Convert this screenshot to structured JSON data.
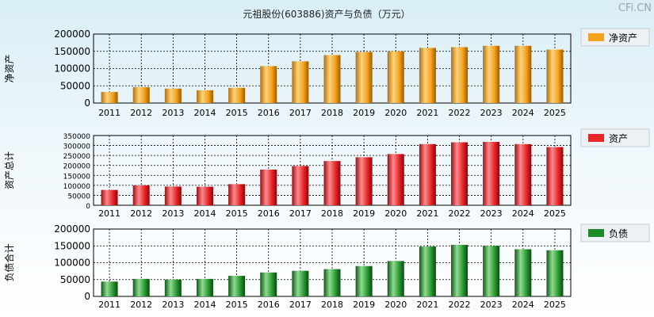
{
  "title": "元祖股份(603886)资产与负债（万元）",
  "brand": "CFi.CN",
  "chart_data": [
    {
      "type": "bar",
      "ylabel": "净资产",
      "legend": "净资产",
      "color": "#f5a21f",
      "categories": [
        "2011",
        "2012",
        "2013",
        "2014",
        "2015",
        "2016",
        "2017",
        "2018",
        "2019",
        "2020",
        "2021",
        "2022",
        "2023",
        "2024",
        "2025"
      ],
      "values": [
        32000,
        46000,
        42000,
        37000,
        44000,
        107000,
        121000,
        139000,
        148000,
        150000,
        160000,
        162000,
        166000,
        166000,
        155000
      ],
      "ylim": [
        0,
        200000
      ],
      "yticks": [
        "0",
        "50000",
        "100000",
        "150000",
        "200000"
      ]
    },
    {
      "type": "bar",
      "ylabel": "资产总计",
      "legend": "资产",
      "color": "#e8262a",
      "categories": [
        "2011",
        "2012",
        "2013",
        "2014",
        "2015",
        "2016",
        "2017",
        "2018",
        "2019",
        "2020",
        "2021",
        "2022",
        "2023",
        "2024",
        "2025"
      ],
      "values": [
        77000,
        100000,
        94000,
        93000,
        106000,
        179000,
        197000,
        222000,
        241000,
        257000,
        307000,
        316000,
        318000,
        307000,
        292000
      ],
      "ylim": [
        0,
        350000
      ],
      "yticks": [
        "0",
        "50000",
        "100000",
        "150000",
        "200000",
        "250000",
        "300000",
        "350000"
      ]
    },
    {
      "type": "bar",
      "ylabel": "负债合计",
      "legend": "负债",
      "color": "#1f8a2a",
      "categories": [
        "2011",
        "2012",
        "2013",
        "2014",
        "2015",
        "2016",
        "2017",
        "2018",
        "2019",
        "2020",
        "2021",
        "2022",
        "2023",
        "2024",
        "2025"
      ],
      "values": [
        44000,
        52000,
        50000,
        52000,
        61000,
        71000,
        76000,
        81000,
        90000,
        105000,
        148000,
        153000,
        150000,
        140000,
        137000
      ],
      "ylim": [
        0,
        200000
      ],
      "yticks": [
        "0",
        "50000",
        "100000",
        "150000",
        "200000"
      ]
    }
  ]
}
